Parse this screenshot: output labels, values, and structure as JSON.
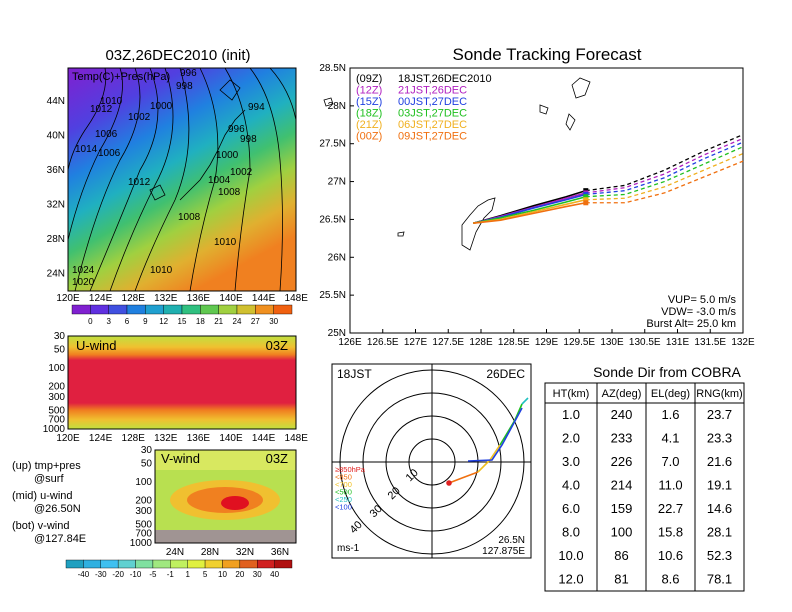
{
  "left_top": {
    "title": "03Z,26DEC2010 (init)",
    "overlay": "Temp(C)+Pres(hPa)",
    "lat_ticks": [
      "44N",
      "40N",
      "36N",
      "32N",
      "28N",
      "24N"
    ],
    "lon_ticks": [
      "120E",
      "124E",
      "128E",
      "132E",
      "136E",
      "140E",
      "144E",
      "148E"
    ],
    "isobar_labels": [
      "996",
      "998",
      "1010",
      "1012",
      "1000",
      "1002",
      "1004",
      "1006",
      "1014",
      "1008",
      "994",
      "1016",
      "1024",
      "1020"
    ],
    "colorbar_labels": [
      "0",
      "3",
      "6",
      "9",
      "12",
      "15",
      "18",
      "21",
      "24",
      "27",
      "30"
    ]
  },
  "uwind": {
    "label": "U-wind",
    "time": "03Z",
    "p_ticks": [
      "30",
      "50",
      "100",
      "200",
      "300",
      "500",
      "700",
      "1000"
    ],
    "lon_ticks": [
      "120E",
      "124E",
      "128E",
      "132E",
      "136E",
      "140E",
      "144E",
      "148E"
    ]
  },
  "vwind": {
    "label": "V-wind",
    "time": "03Z",
    "p_ticks": [
      "30",
      "50",
      "100",
      "200",
      "300",
      "500",
      "700",
      "1000"
    ],
    "lat_ticks": [
      "24N",
      "28N",
      "32N",
      "36N"
    ],
    "colorbar_labels": [
      "-40",
      "-30",
      "-20",
      "-10",
      "-5",
      "-1",
      "1",
      "5",
      "10",
      "20",
      "30",
      "40"
    ]
  },
  "legend_notes": {
    "line1a": "(up) tmp+pres",
    "line1b": "@surf",
    "line2a": "(mid) u-wind",
    "line2b": "@26.50N",
    "line3a": "(bot) v-wind",
    "line3b": "@127.84E"
  },
  "tracking": {
    "title": "Sonde Tracking Forecast",
    "lat_ticks": [
      "28.5N",
      "28N",
      "27.5N",
      "27N",
      "26.5N",
      "26N",
      "25.5N",
      "25N"
    ],
    "lon_ticks": [
      "126E",
      "126.5E",
      "127E",
      "127.5E",
      "128E",
      "128.5E",
      "129E",
      "129.5E",
      "130E",
      "130.5E",
      "131E",
      "131.5E",
      "132E"
    ],
    "launches": [
      {
        "utc": "(09Z)",
        "local": "18JST,26DEC2010",
        "color": "#000000"
      },
      {
        "utc": "(12Z)",
        "local": "21JST,26DEC",
        "color": "#b020c0"
      },
      {
        "utc": "(15Z)",
        "local": "00JST,27DEC",
        "color": "#2040e0"
      },
      {
        "utc": "(18Z)",
        "local": "03JST,27DEC",
        "color": "#20c020"
      },
      {
        "utc": "(21Z)",
        "local": "06JST,27DEC",
        "color": "#f0b020"
      },
      {
        "utc": "(00Z)",
        "local": "09JST,27DEC",
        "color": "#f07010"
      }
    ],
    "vup": "VUP=  5.0  m/s",
    "vdw": "VDW= -3.0  m/s",
    "burst": "Burst Alt=  25.0  km"
  },
  "polar": {
    "time": "18JST",
    "date": "26DEC",
    "ring_labels": [
      "10",
      "20",
      "30",
      "40"
    ],
    "units": "ms-1",
    "loc_lat": "26.5N",
    "loc_lon": "127.875E",
    "legend": [
      {
        "label": "≥850hPa",
        "color": "#e02020"
      },
      {
        "label": "<850",
        "color": "#f07010"
      },
      {
        "label": "<700",
        "color": "#f0c020"
      },
      {
        "label": "<500",
        "color": "#20c020"
      },
      {
        "label": "<250",
        "color": "#20c0c0"
      },
      {
        "label": "<100",
        "color": "#2040e0"
      }
    ]
  },
  "sonde_table": {
    "title": "Sonde Dir from COBRA",
    "headers": [
      "HT(km)",
      "AZ(deg)",
      "EL(deg)",
      "RNG(km)"
    ],
    "rows": [
      [
        "1.0",
        "240",
        "1.6",
        "23.7"
      ],
      [
        "2.0",
        "233",
        "4.1",
        "23.3"
      ],
      [
        "3.0",
        "226",
        "7.0",
        "21.6"
      ],
      [
        "4.0",
        "214",
        "11.0",
        "19.1"
      ],
      [
        "6.0",
        "159",
        "22.7",
        "14.6"
      ],
      [
        "8.0",
        "100",
        "15.8",
        "28.1"
      ],
      [
        "10.0",
        "86",
        "10.6",
        "52.3"
      ],
      [
        "12.0",
        "81",
        "8.6",
        "78.1"
      ]
    ]
  },
  "chart_data": [
    {
      "type": "heatmap",
      "title": "03Z,26DEC2010 (init)",
      "xlabel": "",
      "ylabel": "",
      "x_ticks": [
        "120E",
        "124E",
        "128E",
        "132E",
        "136E",
        "140E",
        "144E",
        "148E"
      ],
      "y_ticks": [
        "24N",
        "28N",
        "32N",
        "36N",
        "40N",
        "44N"
      ],
      "color_scale": [
        0,
        3,
        6,
        9,
        12,
        15,
        18,
        21,
        24,
        27,
        30
      ]
    },
    {
      "type": "line",
      "title": "Sonde Tracking Forecast",
      "xlim": [
        126,
        132
      ],
      "ylim": [
        25,
        28.5
      ],
      "series": [
        {
          "name": "(09Z) 18JST,26DEC2010",
          "solid": [
            [
              127.88,
              26.45
            ],
            [
              128.3,
              26.55
            ],
            [
              128.8,
              26.68
            ],
            [
              129.3,
              26.8
            ],
            [
              129.6,
              26.88
            ]
          ],
          "dashed": [
            [
              129.6,
              26.88
            ],
            [
              130.2,
              26.95
            ],
            [
              130.8,
              27.15
            ],
            [
              131.4,
              27.4
            ],
            [
              132,
              27.62
            ]
          ]
        },
        {
          "name": "(12Z) 21JST,26DEC",
          "solid": [
            [
              127.88,
              26.45
            ],
            [
              128.3,
              26.54
            ],
            [
              128.8,
              26.66
            ],
            [
              129.3,
              26.78
            ],
            [
              129.6,
              26.85
            ]
          ],
          "dashed": [
            [
              129.6,
              26.85
            ],
            [
              130.2,
              26.92
            ],
            [
              130.8,
              27.1
            ],
            [
              131.4,
              27.35
            ],
            [
              132,
              27.57
            ]
          ]
        },
        {
          "name": "(15Z) 00JST,27DEC",
          "solid": [
            [
              127.88,
              26.45
            ],
            [
              128.3,
              26.53
            ],
            [
              128.8,
              26.65
            ],
            [
              129.3,
              26.76
            ],
            [
              129.6,
              26.83
            ]
          ],
          "dashed": [
            [
              129.6,
              26.83
            ],
            [
              130.2,
              26.88
            ],
            [
              130.8,
              27.05
            ],
            [
              131.4,
              27.3
            ],
            [
              132,
              27.52
            ]
          ]
        },
        {
          "name": "(18Z) 03JST,27DEC",
          "solid": [
            [
              127.88,
              26.45
            ],
            [
              128.3,
              26.52
            ],
            [
              128.8,
              26.62
            ],
            [
              129.3,
              26.73
            ],
            [
              129.6,
              26.8
            ]
          ],
          "dashed": [
            [
              129.6,
              26.8
            ],
            [
              130.2,
              26.83
            ],
            [
              130.8,
              27.0
            ],
            [
              131.4,
              27.23
            ],
            [
              132,
              27.46
            ]
          ]
        },
        {
          "name": "(21Z) 06JST,27DEC",
          "solid": [
            [
              127.88,
              26.45
            ],
            [
              128.3,
              26.5
            ],
            [
              128.8,
              26.6
            ],
            [
              129.3,
              26.7
            ],
            [
              129.6,
              26.76
            ]
          ],
          "dashed": [
            [
              129.6,
              26.76
            ],
            [
              130.2,
              26.78
            ],
            [
              130.8,
              26.93
            ],
            [
              131.4,
              27.15
            ],
            [
              132,
              27.37
            ]
          ]
        },
        {
          "name": "(00Z) 09JST,27DEC",
          "solid": [
            [
              127.88,
              26.45
            ],
            [
              128.3,
              26.49
            ],
            [
              128.8,
              26.58
            ],
            [
              129.3,
              26.67
            ],
            [
              129.6,
              26.72
            ]
          ],
          "dashed": [
            [
              129.6,
              26.72
            ],
            [
              130.2,
              26.72
            ],
            [
              130.8,
              26.85
            ],
            [
              131.4,
              27.06
            ],
            [
              132,
              27.27
            ]
          ]
        }
      ]
    },
    {
      "type": "table",
      "title": "Sonde Dir from COBRA",
      "headers": [
        "HT(km)",
        "AZ(deg)",
        "EL(deg)",
        "RNG(km)"
      ],
      "rows": [
        [
          "1.0",
          "240",
          "1.6",
          "23.7"
        ],
        [
          "2.0",
          "233",
          "4.1",
          "23.3"
        ],
        [
          "3.0",
          "226",
          "7.0",
          "21.6"
        ],
        [
          "4.0",
          "214",
          "11.0",
          "19.1"
        ],
        [
          "6.0",
          "159",
          "22.7",
          "14.6"
        ],
        [
          "8.0",
          "100",
          "15.8",
          "28.1"
        ],
        [
          "10.0",
          "86",
          "10.6",
          "52.3"
        ],
        [
          "12.0",
          "81",
          "8.6",
          "78.1"
        ]
      ]
    }
  ]
}
